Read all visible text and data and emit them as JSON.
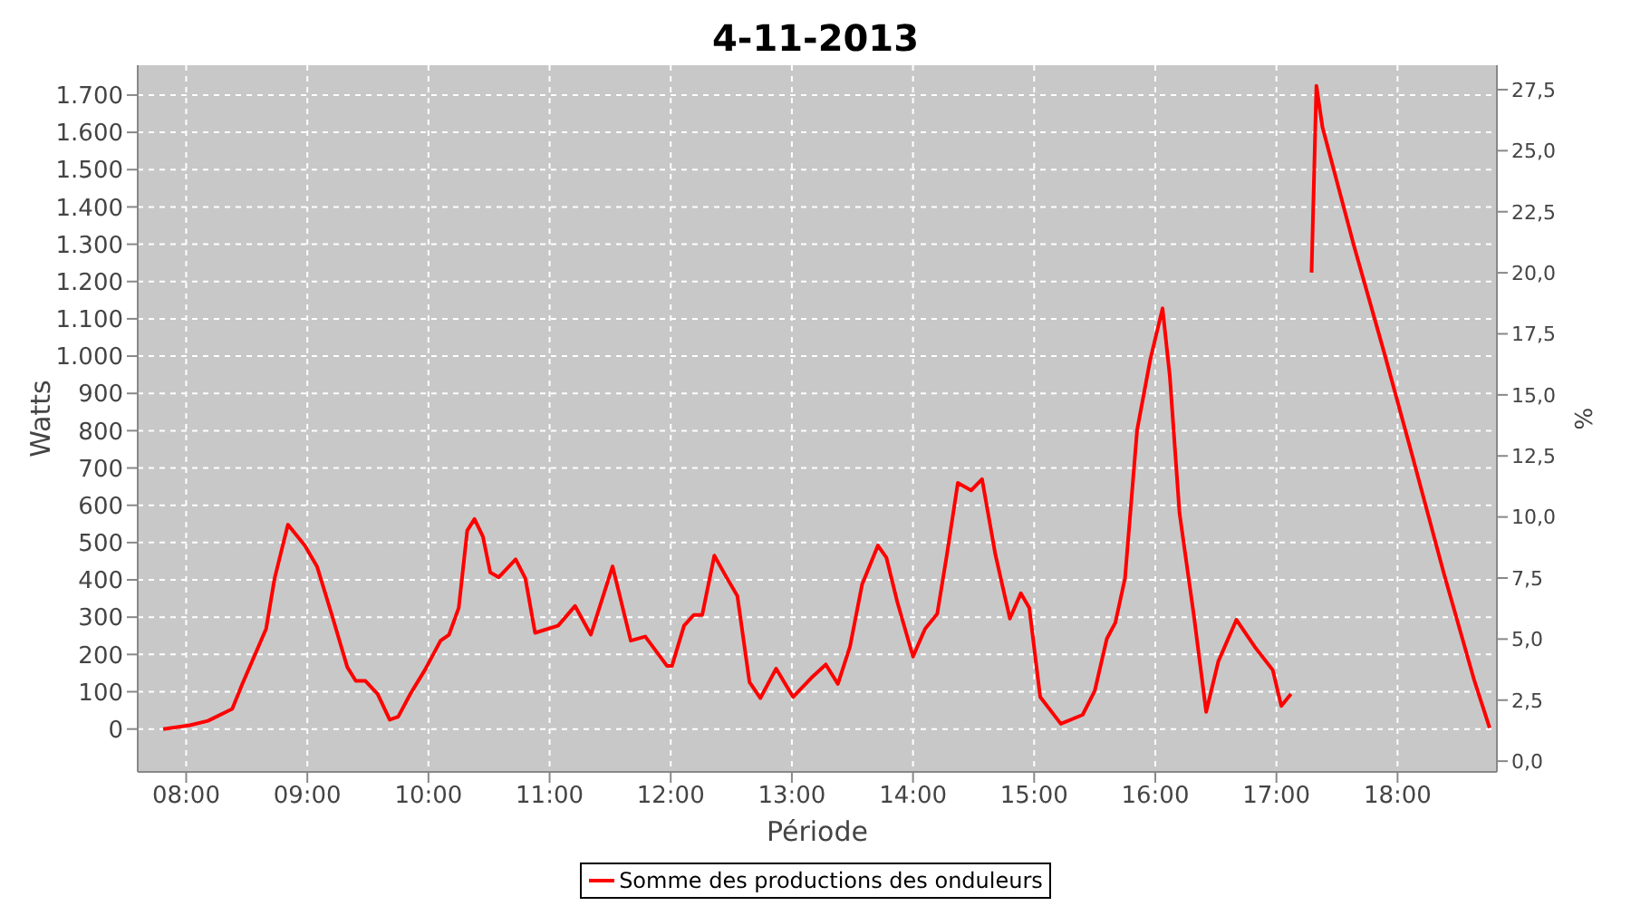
{
  "chart_data": {
    "type": "line",
    "title": "4-11-2013",
    "xlabel": "Période",
    "ylabel": "Watts",
    "y2label": "%",
    "x": [
      7.81,
      8.03,
      8.18,
      8.38,
      8.46,
      8.66,
      8.73,
      8.84,
      8.98,
      9.08,
      9.2,
      9.33,
      9.4,
      9.48,
      9.58,
      9.68,
      9.75,
      9.85,
      9.97,
      10.1,
      10.17,
      10.25,
      10.32,
      10.38,
      10.45,
      10.51,
      10.58,
      10.72,
      10.8,
      10.88,
      11.07,
      11.21,
      11.34,
      11.52,
      11.67,
      11.79,
      11.97,
      12.01,
      12.11,
      12.19,
      12.26,
      12.36,
      12.46,
      12.55,
      12.65,
      12.74,
      12.87,
      13.01,
      13.16,
      13.28,
      13.38,
      13.48,
      13.58,
      13.71,
      13.78,
      13.87,
      14.0,
      14.1,
      14.2,
      14.28,
      14.37,
      14.48,
      14.57,
      14.68,
      14.8,
      14.89,
      14.96,
      15.05,
      15.22,
      15.4,
      15.5,
      15.6,
      15.67,
      15.75,
      15.85,
      15.96,
      16.06,
      16.12,
      16.2,
      16.32,
      16.42,
      16.52,
      16.67,
      16.82,
      16.97,
      17.04,
      17.12,
      17.17,
      17.24,
      17.29,
      17.33,
      17.38,
      17.64,
      17.89,
      18.13,
      18.38,
      18.63,
      18.76
    ],
    "series": [
      {
        "name": "Somme des productions des onduleurs",
        "color": "#ff0000",
        "values": [
          0,
          10,
          22,
          54,
          118,
          269,
          404,
          548,
          492,
          436,
          309,
          166,
          129,
          129,
          94,
          25,
          33,
          94,
          158,
          237,
          253,
          325,
          532,
          563,
          516,
          420,
          407,
          455,
          404,
          258,
          277,
          330,
          253,
          436,
          237,
          248,
          169,
          169,
          277,
          306,
          306,
          465,
          407,
          357,
          126,
          83,
          162,
          86,
          137,
          173,
          121,
          221,
          388,
          492,
          460,
          341,
          194,
          269,
          309,
          468,
          660,
          640,
          670,
          468,
          296,
          364,
          325,
          86,
          14,
          38,
          102,
          242,
          285,
          404,
          802,
          993,
          1128,
          946,
          579,
          301,
          46,
          181,
          293,
          221,
          158,
          62,
          94,
          null,
          null,
          1224,
          1725,
          1614,
          1296,
          1009,
          723,
          420,
          134,
          3
        ]
      }
    ],
    "xlim": [
      7.6,
      18.82
    ],
    "xticks": [
      {
        "value": 8,
        "label": "08:00"
      },
      {
        "value": 9,
        "label": "09:00"
      },
      {
        "value": 10,
        "label": "10:00"
      },
      {
        "value": 11,
        "label": "11:00"
      },
      {
        "value": 12,
        "label": "12:00"
      },
      {
        "value": 13,
        "label": "13:00"
      },
      {
        "value": 14,
        "label": "14:00"
      },
      {
        "value": 15,
        "label": "15:00"
      },
      {
        "value": 16,
        "label": "16:00"
      },
      {
        "value": 17,
        "label": "17:00"
      },
      {
        "value": 18,
        "label": "18:00"
      }
    ],
    "ylim": [
      -115,
      1780
    ],
    "yticks": [
      0,
      100,
      200,
      300,
      400,
      500,
      600,
      700,
      800,
      900,
      {
        "value": 1000,
        "label": "1.000"
      },
      {
        "value": 1100,
        "label": "1.100"
      },
      {
        "value": 1200,
        "label": "1.200"
      },
      {
        "value": 1300,
        "label": "1.300"
      },
      {
        "value": 1400,
        "label": "1.400"
      },
      {
        "value": 1500,
        "label": "1.500"
      },
      {
        "value": 1600,
        "label": "1.600"
      },
      {
        "value": 1700,
        "label": "1.700"
      }
    ],
    "y2lim": [
      -0.44,
      28.5
    ],
    "y2ticks": [
      {
        "value": 0,
        "label": "0,0"
      },
      {
        "value": 2.5,
        "label": "2,5"
      },
      {
        "value": 5,
        "label": "5,0"
      },
      {
        "value": 7.5,
        "label": "7,5"
      },
      {
        "value": 10,
        "label": "10,0"
      },
      {
        "value": 12.5,
        "label": "12,5"
      },
      {
        "value": 15,
        "label": "15,0"
      },
      {
        "value": 17.5,
        "label": "17,5"
      },
      {
        "value": 20,
        "label": "20,0"
      },
      {
        "value": 22.5,
        "label": "22,5"
      },
      {
        "value": 25,
        "label": "25,0"
      },
      {
        "value": 27.5,
        "label": "27,5"
      }
    ],
    "grid": true,
    "legend": "bottom",
    "marker": "none",
    "line_style": "solid"
  }
}
